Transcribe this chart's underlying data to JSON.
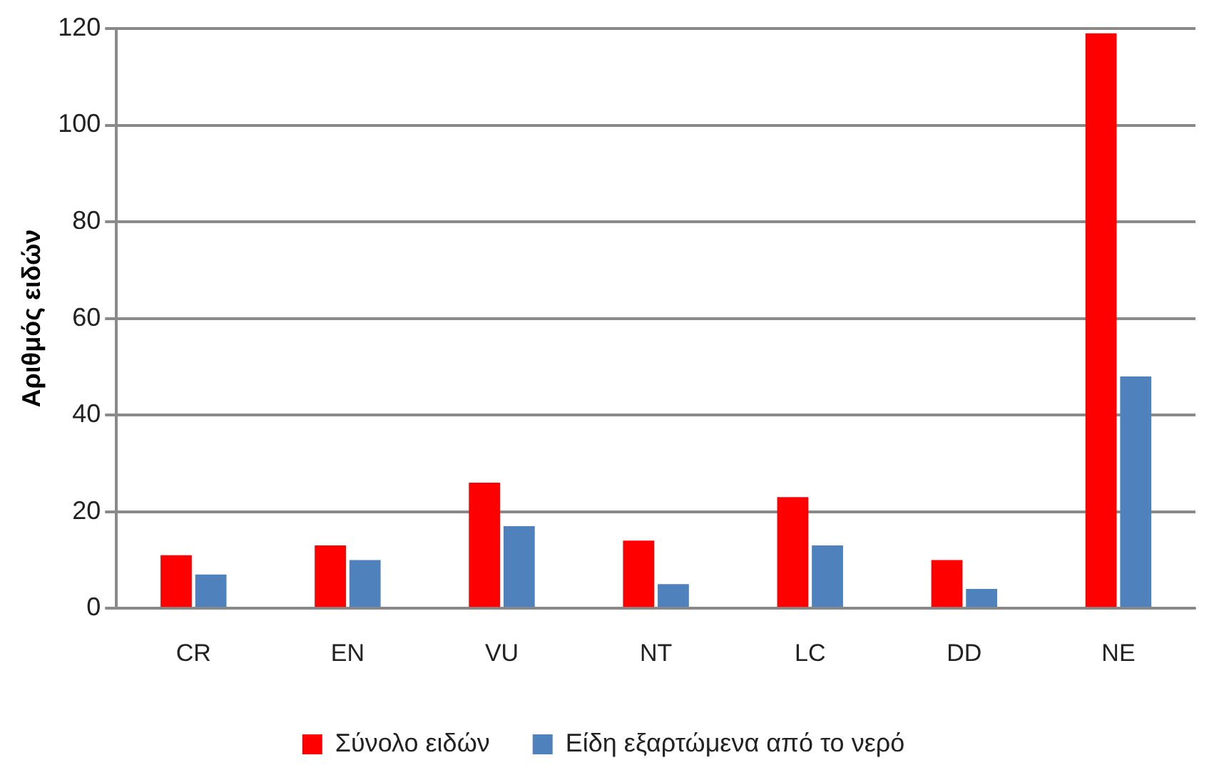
{
  "chart_data": {
    "type": "bar",
    "ylabel": "Αριθμός ειδών",
    "categories": [
      "CR",
      "EN",
      "VU",
      "NT",
      "LC",
      "DD",
      "NE"
    ],
    "series": [
      {
        "name": "Σύνολο ειδών",
        "color": "#ff0000",
        "values": [
          11,
          13,
          26,
          14,
          23,
          10,
          119
        ]
      },
      {
        "name": "Είδη εξαρτώμενα από το νερό",
        "color": "#4f81bd",
        "values": [
          7,
          10,
          17,
          5,
          13,
          4,
          48
        ]
      }
    ],
    "ylim": [
      0,
      120
    ],
    "yticks": [
      0,
      20,
      40,
      60,
      80,
      100,
      120
    ],
    "grid": "y",
    "legend": "bottom"
  }
}
